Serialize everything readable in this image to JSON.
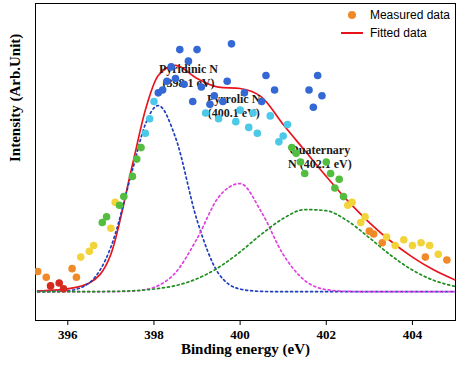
{
  "chart_data": {
    "type": "scatter",
    "x_label": "Binding energy (eV)",
    "y_label": "Intensity (Arb.Unit)",
    "xlim": [
      395.25,
      405
    ],
    "xticks": [
      396,
      398,
      400,
      402,
      404
    ],
    "ylim": [
      -0.1,
      1.0
    ],
    "yticks": [],
    "tick_labels": "x",
    "legend": "top-right",
    "series": [
      {
        "name": "Measured data",
        "type": "scatter",
        "marker": "circle",
        "color": "#f08a28",
        "x": [
          395.3,
          395.5,
          395.6,
          395.8,
          395.9,
          396.1,
          396.2,
          396.3,
          396.5,
          396.6,
          396.8,
          396.9,
          397.0,
          397.1,
          397.2,
          397.3,
          397.5,
          397.6,
          397.7,
          397.8,
          397.9,
          398.0,
          398.1,
          398.2,
          398.3,
          398.4,
          398.5,
          398.6,
          398.7,
          398.8,
          398.9,
          399.0,
          399.1,
          399.2,
          399.3,
          399.4,
          399.5,
          399.6,
          399.7,
          399.8,
          399.9,
          400.0,
          400.1,
          400.2,
          400.3,
          400.4,
          400.5,
          400.6,
          400.7,
          400.8,
          400.9,
          401.0,
          401.1,
          401.2,
          401.3,
          401.4,
          401.5,
          401.6,
          401.7,
          401.8,
          401.9,
          402.0,
          402.1,
          402.2,
          402.3,
          402.4,
          402.5,
          402.6,
          402.8,
          402.9,
          403.0,
          403.1,
          403.3,
          403.4,
          403.6,
          403.8,
          404.0,
          404.2,
          404.3,
          404.4,
          404.6,
          404.8
        ],
        "values": [
          0.07,
          0.05,
          0.02,
          0.03,
          0.01,
          0.08,
          0.05,
          0.12,
          0.14,
          0.16,
          0.24,
          0.26,
          0.22,
          0.31,
          0.3,
          0.33,
          0.4,
          0.46,
          0.5,
          0.55,
          0.6,
          0.66,
          0.69,
          0.7,
          0.73,
          0.78,
          0.74,
          0.84,
          0.72,
          0.8,
          0.66,
          0.84,
          0.71,
          0.62,
          0.65,
          0.68,
          0.6,
          0.66,
          0.73,
          0.86,
          0.59,
          0.63,
          0.69,
          0.57,
          0.62,
          0.55,
          0.66,
          0.75,
          0.61,
          0.7,
          0.52,
          0.54,
          0.58,
          0.5,
          0.48,
          0.45,
          0.41,
          0.7,
          0.64,
          0.75,
          0.68,
          0.45,
          0.41,
          0.36,
          0.39,
          0.33,
          0.3,
          0.31,
          0.24,
          0.26,
          0.21,
          0.2,
          0.17,
          0.19,
          0.16,
          0.18,
          0.16,
          0.17,
          0.12,
          0.16,
          0.13,
          0.11
        ],
        "colors": [
          "#f08a28",
          "#f08a28",
          "#d7281e",
          "#d7281e",
          "#d7281e",
          "#f08a28",
          "#f08a28",
          "#f2d43a",
          "#f2d43a",
          "#f2d43a",
          "#52bd3e",
          "#52bd3e",
          "#f2d43a",
          "#f2d43a",
          "#52bd3e",
          "#52bd3e",
          "#52bd3e",
          "#52bd3e",
          "#52bd3e",
          "#4cc8e8",
          "#4cc8e8",
          "#4cc8e8",
          "#3468d4",
          "#3468d4",
          "#3468d4",
          "#3468d4",
          "#3468d4",
          "#3468d4",
          "#3468d4",
          "#3468d4",
          "#3468d4",
          "#3468d4",
          "#3468d4",
          "#4cc8e8",
          "#3468d4",
          "#3468d4",
          "#4cc8e8",
          "#3468d4",
          "#3468d4",
          "#3468d4",
          "#4cc8e8",
          "#4cc8e8",
          "#3468d4",
          "#4cc8e8",
          "#4cc8e8",
          "#4cc8e8",
          "#3468d4",
          "#3468d4",
          "#4cc8e8",
          "#3468d4",
          "#4cc8e8",
          "#4cc8e8",
          "#4cc8e8",
          "#52bd3e",
          "#52bd3e",
          "#52bd3e",
          "#52bd3e",
          "#3468d4",
          "#3468d4",
          "#3468d4",
          "#3468d4",
          "#52bd3e",
          "#52bd3e",
          "#52bd3e",
          "#52bd3e",
          "#52bd3e",
          "#f2d43a",
          "#f2d43a",
          "#f2d43a",
          "#f2d43a",
          "#f08a28",
          "#f08a28",
          "#f08a28",
          "#f2d43a",
          "#f2d43a",
          "#f2d43a",
          "#f2d43a",
          "#f2d43a",
          "#f08a28",
          "#f2d43a",
          "#f2d43a",
          "#f08a28"
        ]
      },
      {
        "name": "Fitted data",
        "type": "line",
        "line_style": "solid",
        "color": "#e8141c",
        "x": [
          395.3,
          395.5,
          396,
          396.5,
          397,
          397.5,
          397.8,
          398.1,
          398.5,
          399,
          399.5,
          400,
          400.5,
          401,
          401.5,
          402,
          402.5,
          403,
          403.5,
          404,
          404.5,
          405
        ],
        "values": [
          0.003,
          0.004,
          0.01,
          0.03,
          0.13,
          0.44,
          0.63,
          0.75,
          0.785,
          0.74,
          0.71,
          0.705,
          0.675,
          0.58,
          0.49,
          0.4,
          0.315,
          0.24,
          0.175,
          0.12,
          0.075,
          0.04
        ]
      },
      {
        "type": "line",
        "line_style": "dotted",
        "color": "#1f3fbf",
        "x": [
          395.3,
          395.5,
          396,
          396.5,
          397,
          397.5,
          397.8,
          398.1,
          398.5,
          399,
          399.5,
          400,
          400.5,
          401,
          401.5,
          402,
          402.5,
          403,
          403.5,
          404,
          404.5,
          405
        ],
        "values": [
          0,
          0,
          0.003,
          0.031,
          0.155,
          0.422,
          0.581,
          0.646,
          0.535,
          0.248,
          0.063,
          0.009,
          0.001,
          0,
          0,
          0,
          0,
          0,
          0,
          0,
          0,
          0
        ]
      },
      {
        "type": "line",
        "line_style": "dotted",
        "color": "#e040e0",
        "x": [
          395.3,
          395.5,
          396,
          396.5,
          397,
          397.5,
          397.8,
          398.1,
          398.5,
          399,
          399.5,
          400,
          400.5,
          401,
          401.5,
          402,
          402.5,
          403,
          403.5,
          404,
          404.5,
          405
        ],
        "values": [
          0,
          0,
          0,
          0,
          0,
          0.002,
          0.007,
          0.021,
          0.066,
          0.184,
          0.328,
          0.375,
          0.275,
          0.129,
          0.039,
          0.007,
          0.001,
          0,
          0,
          0,
          0,
          0
        ]
      },
      {
        "type": "line",
        "line_style": "dotted",
        "color": "#1f8f1f",
        "x": [
          395.3,
          395.5,
          396,
          396.5,
          397,
          397.5,
          397.8,
          398.1,
          398.5,
          399,
          399.5,
          400,
          400.5,
          401,
          401.5,
          402,
          402.5,
          403,
          403.5,
          404,
          404.5,
          405
        ],
        "values": [
          0,
          0,
          0,
          0,
          0.001,
          0.003,
          0.006,
          0.011,
          0.021,
          0.045,
          0.084,
          0.138,
          0.2,
          0.254,
          0.285,
          0.281,
          0.245,
          0.187,
          0.126,
          0.075,
          0.039,
          0.018
        ]
      }
    ],
    "annotations": [
      {
        "lines": [
          "Pyridinic N",
          "(398.1 eV)"
        ],
        "x": 398.8,
        "y": 0.75
      },
      {
        "lines": [
          "Pyrrolic N",
          "(400.1 eV)"
        ],
        "x": 399.85,
        "y": 0.645
      },
      {
        "lines": [
          "Quaternary",
          "N (402.1 eV)"
        ],
        "x": 401.85,
        "y": 0.47
      }
    ]
  }
}
